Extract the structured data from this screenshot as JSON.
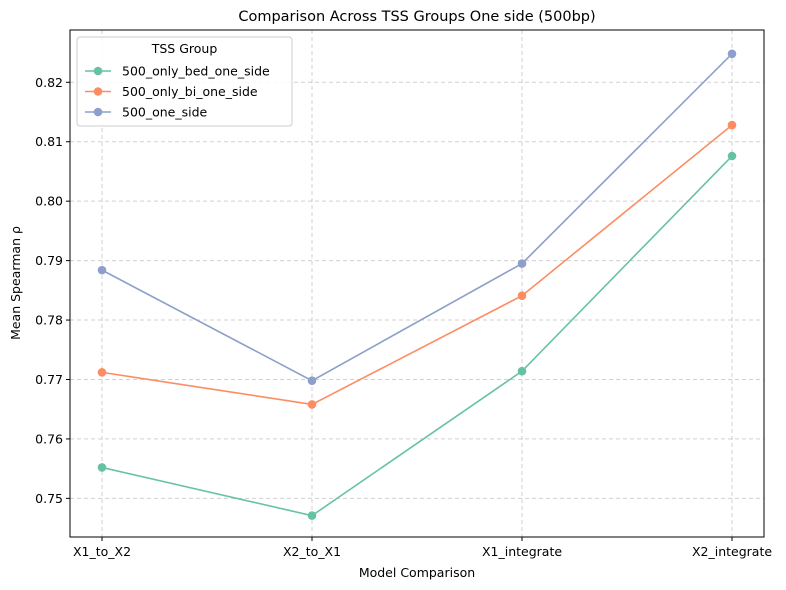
{
  "chart_data": {
    "type": "line",
    "title": "Comparison Across TSS Groups One side (500bp)",
    "xlabel": "Model Comparison",
    "ylabel": "Mean Spearman ρ",
    "categories": [
      "X1_to_X2",
      "X2_to_X1",
      "X1_integrate",
      "X2_integrate"
    ],
    "ylim": [
      0.7435,
      0.8288
    ],
    "yticks": [
      0.75,
      0.76,
      0.77,
      0.78,
      0.79,
      0.8,
      0.81,
      0.82
    ],
    "ytick_labels": [
      "0.75",
      "0.76",
      "0.77",
      "0.78",
      "0.79",
      "0.80",
      "0.81",
      "0.82"
    ],
    "grid": true,
    "legend": {
      "title": "TSS Group",
      "placement": "top-left"
    },
    "series": [
      {
        "name": "500_only_bed_one_side",
        "color": "#66c2a5",
        "values": [
          0.7552,
          0.7471,
          0.7714,
          0.8076
        ]
      },
      {
        "name": "500_only_bi_one_side",
        "color": "#fc8d62",
        "values": [
          0.7712,
          0.7658,
          0.7841,
          0.8128
        ]
      },
      {
        "name": "500_one_side",
        "color": "#8da0cb",
        "values": [
          0.7884,
          0.7698,
          0.7895,
          0.8248
        ]
      }
    ]
  }
}
